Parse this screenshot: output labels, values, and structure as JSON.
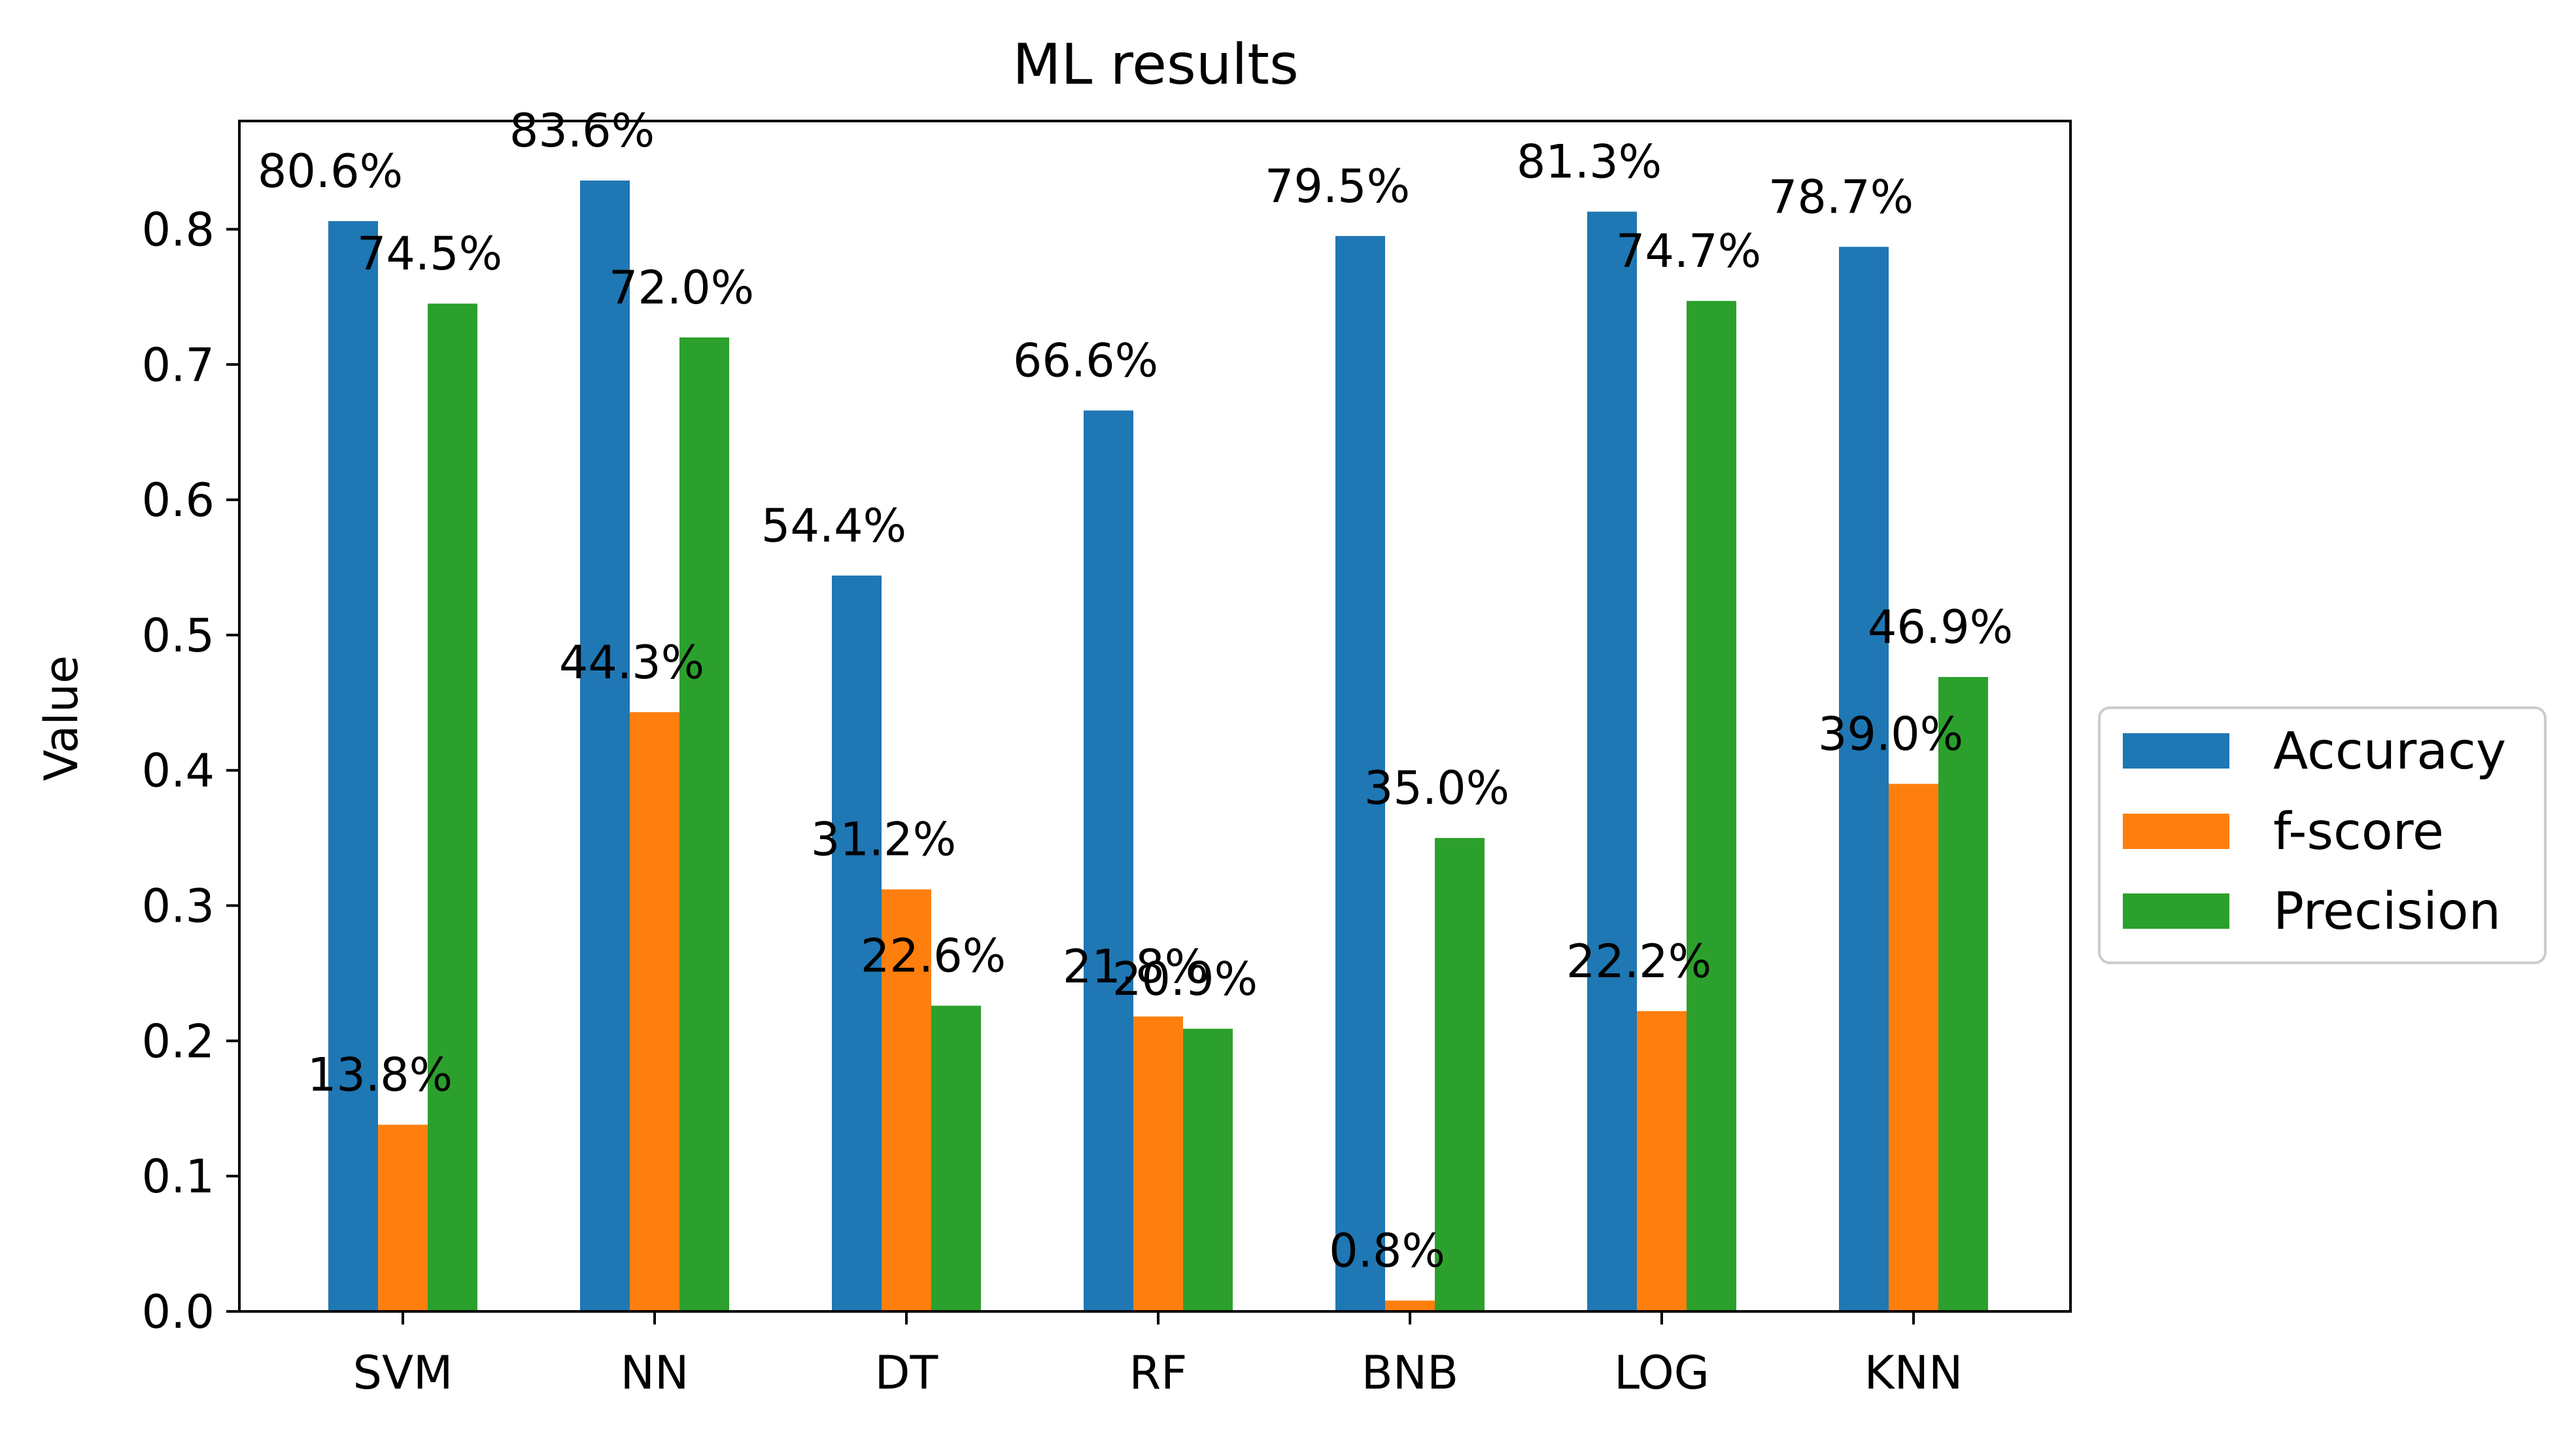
{
  "chart_data": {
    "type": "bar",
    "title": "ML results",
    "xlabel": "",
    "ylabel": "Value",
    "ylim": [
      0,
      0.88
    ],
    "yticks": [
      0.0,
      0.1,
      0.2,
      0.3,
      0.4,
      0.5,
      0.6,
      0.7,
      0.8
    ],
    "yticklabels": [
      "0.0",
      "0.1",
      "0.2",
      "0.3",
      "0.4",
      "0.5",
      "0.6",
      "0.7",
      "0.8"
    ],
    "grid": false,
    "legend_position": "center-right",
    "categories": [
      "SVM",
      "NN",
      "DT",
      "RF",
      "BNB",
      "LOG",
      "KNN"
    ],
    "series": [
      {
        "name": "Accuracy",
        "color": "#1f77b4",
        "values": [
          0.806,
          0.836,
          0.544,
          0.666,
          0.795,
          0.813,
          0.787
        ],
        "labels": [
          "80.6%",
          "83.6%",
          "54.4%",
          "66.6%",
          "79.5%",
          "81.3%",
          "78.7%"
        ]
      },
      {
        "name": "f-score",
        "color": "#ff7f0e",
        "values": [
          0.138,
          0.443,
          0.312,
          0.218,
          0.008,
          0.222,
          0.39
        ],
        "labels": [
          "13.8%",
          "44.3%",
          "31.2%",
          "21.8%",
          "0.8%",
          "22.2%",
          "39.0%"
        ]
      },
      {
        "name": "Precision",
        "color": "#2ca02c",
        "values": [
          0.745,
          0.72,
          0.226,
          0.209,
          0.35,
          0.747,
          0.469
        ],
        "labels": [
          "74.5%",
          "72.0%",
          "22.6%",
          "20.9%",
          "35.0%",
          "74.7%",
          "46.9%"
        ]
      }
    ]
  }
}
